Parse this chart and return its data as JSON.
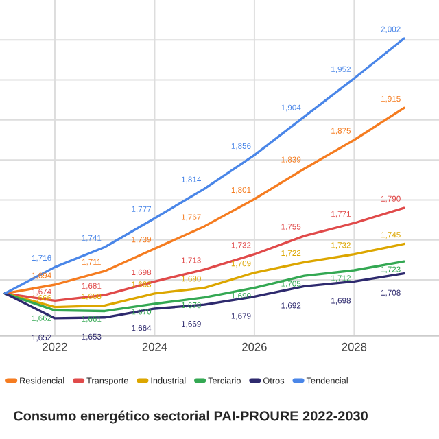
{
  "chart_data": {
    "type": "line",
    "title": "Consumo energético sectorial PAI-PROURE 2022-2030",
    "x": [
      2021,
      2022,
      2023,
      2024,
      2025,
      2026,
      2027,
      2028,
      2029
    ],
    "xlim": [
      2020.9,
      2029.7
    ],
    "xticks": [
      2022,
      2024,
      2026,
      2028
    ],
    "ylim": [
      1630,
      2050
    ],
    "yticks": [
      {
        "value": 1700,
        "label": null
      },
      {
        "value": 1750,
        "label": null
      },
      {
        "value": 1800,
        "label": null
      },
      {
        "value": 1850,
        "label": null
      },
      {
        "value": 1950,
        "label": null
      },
      {
        "value": 1900,
        "label": null
      },
      {
        "value": 2000,
        "label": null
      }
    ],
    "tick_labels": "x",
    "grid": true,
    "legend": "bottom",
    "marker": "none",
    "line_style": "solid",
    "series": [
      {
        "name": "Residencial",
        "color": "#f57c20",
        "values": [
          1683,
          1694,
          1711,
          1739,
          1767,
          1801,
          1839,
          1875,
          1915
        ],
        "value_labels": [
          null,
          "1,694",
          "1,711",
          "1,739",
          "1,767",
          "1,801",
          "1,839",
          "1,875",
          "1,915"
        ]
      },
      {
        "name": "Transporte",
        "color": "#e04a4a",
        "values": [
          1683,
          1674,
          1681,
          1698,
          1713,
          1732,
          1755,
          1771,
          1790
        ],
        "value_labels": [
          null,
          "1,674",
          "1,681",
          "1,698",
          "1,713",
          "1,732",
          "1,755",
          "1,771",
          "1,790"
        ]
      },
      {
        "name": "Industrial",
        "color": "#dca600",
        "values": [
          1683,
          1666,
          1668,
          1683,
          1690,
          1709,
          1722,
          1732,
          1745
        ],
        "value_labels": [
          null,
          "1,666",
          "1,668",
          "1,683",
          "1,690",
          "1,709",
          "1,722",
          "1,732",
          "1,745"
        ]
      },
      {
        "name": "Terciario",
        "color": "#34a853",
        "values": [
          1683,
          1662,
          1661,
          1670,
          1678,
          1690,
          1705,
          1712,
          1723
        ],
        "value_labels": [
          null,
          "1,662",
          "1,661",
          "1,670",
          "1,678",
          "1,690",
          "1,705",
          "1,712",
          "1,723"
        ]
      },
      {
        "name": "Otros",
        "color": "#2e2a6e",
        "values": [
          1683,
          1652,
          1653,
          1664,
          1669,
          1679,
          1692,
          1698,
          1708
        ],
        "value_labels": [
          null,
          "1,652",
          "1,653",
          "1,664",
          "1,669",
          "1,679",
          "1,692",
          "1,698",
          "1,708"
        ]
      },
      {
        "name": "Tendencial",
        "color": "#4a86e8",
        "values": [
          1683,
          1716,
          1741,
          1777,
          1814,
          1856,
          1904,
          1952,
          2002
        ],
        "value_labels": [
          null,
          "1,716",
          "1,741",
          "1,777",
          "1,814",
          "1,856",
          "1,904",
          "1,952",
          "2,002"
        ]
      }
    ]
  }
}
